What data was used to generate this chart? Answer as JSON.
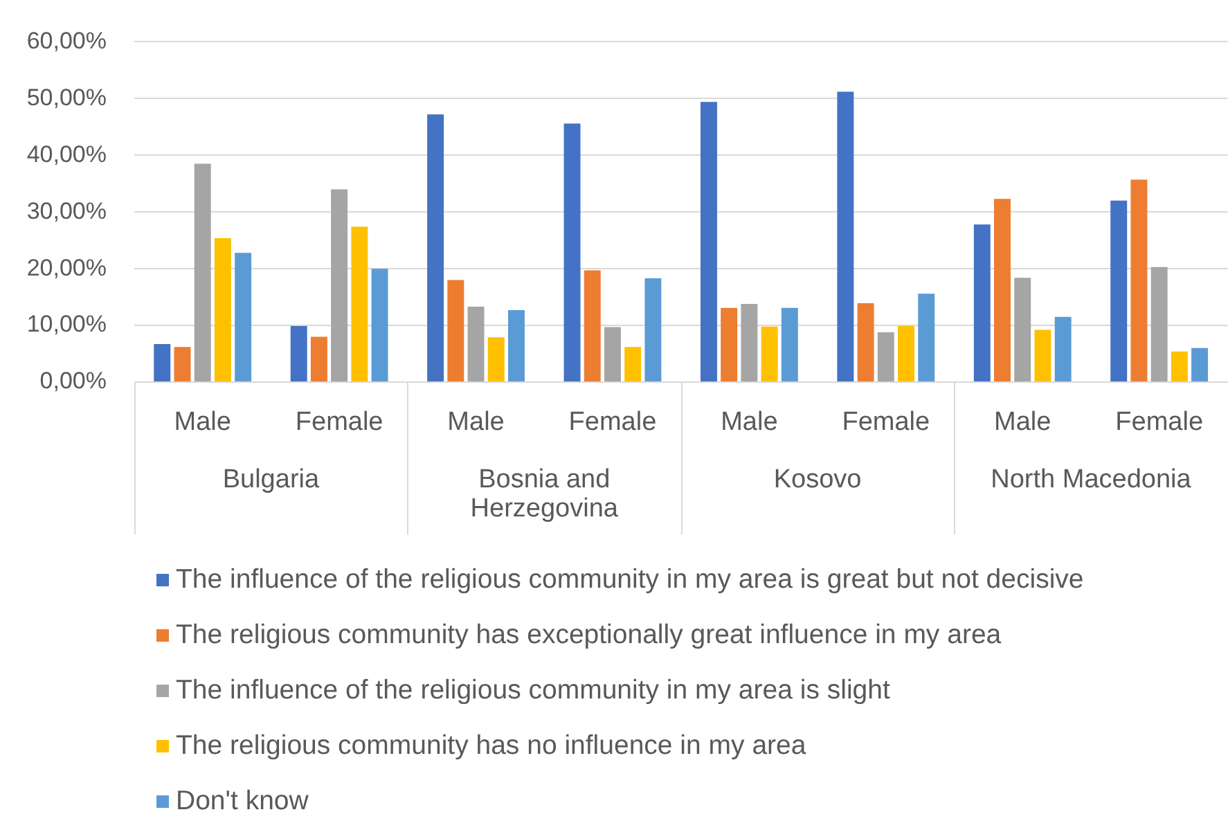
{
  "chart_data": {
    "type": "bar",
    "categories": [
      "Male",
      "Female",
      "Male",
      "Female",
      "Male",
      "Female",
      "Male",
      "Female"
    ],
    "annotations": [
      "Bulgaria",
      "Bosnia and Herzegovina",
      "Kosovo",
      "North Macedonia"
    ],
    "series": [
      {
        "name": "The influence of the religious community in my area is great but not decisive",
        "color": "#4472c4",
        "values": [
          6.7,
          9.9,
          47.2,
          45.6,
          49.4,
          51.2,
          27.8,
          32.0
        ]
      },
      {
        "name": "The religious community has exceptionally great influence in my area",
        "color": "#ed7d31",
        "values": [
          6.2,
          8.0,
          18.0,
          19.7,
          13.1,
          13.9,
          32.3,
          35.7
        ]
      },
      {
        "name": "The influence of the religious community in my area is slight",
        "color": "#a5a5a5",
        "values": [
          38.5,
          34.0,
          13.3,
          9.7,
          13.8,
          8.8,
          18.4,
          20.3
        ]
      },
      {
        "name": "The religious community has no influence in my area",
        "color": "#ffc000",
        "values": [
          25.4,
          27.4,
          7.9,
          6.2,
          9.8,
          9.9,
          9.2,
          5.4
        ]
      },
      {
        "name": "Don't know",
        "color": "#5b9bd5",
        "values": [
          22.8,
          20.0,
          12.7,
          18.3,
          13.1,
          15.6,
          11.5,
          6.0
        ]
      }
    ],
    "ylim": [
      0,
      60
    ],
    "yticks": [
      {
        "value": 0,
        "label": "0,00%"
      },
      {
        "value": 10,
        "label": "10,00%"
      },
      {
        "value": 20,
        "label": "20,00%"
      },
      {
        "value": 30,
        "label": "30,00%"
      },
      {
        "value": 40,
        "label": "40,00%"
      },
      {
        "value": 50,
        "label": "50,00%"
      },
      {
        "value": 60,
        "label": "60,00%"
      }
    ],
    "grid": "y",
    "legend": "bottom left"
  }
}
